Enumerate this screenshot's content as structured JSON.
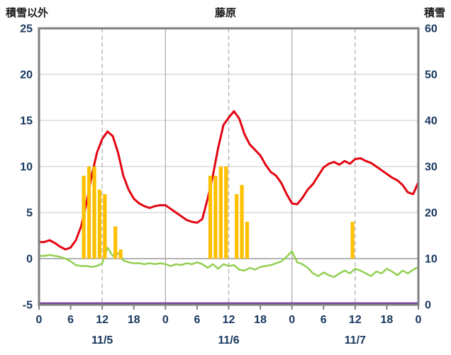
{
  "header": {
    "left_label": "積雪以外",
    "title": "藤原",
    "right_label": "積雪"
  },
  "chart_data": {
    "type": "line+bar",
    "title": "藤原",
    "left_axis": {
      "label": "積雪以外",
      "min": -5,
      "max": 25,
      "ticks": [
        25,
        20,
        15,
        10,
        5,
        0,
        -5
      ]
    },
    "right_axis": {
      "label": "積雪",
      "min": 0,
      "max": 60,
      "ticks": [
        60,
        50,
        40,
        30,
        20,
        10,
        0
      ]
    },
    "x_axis": {
      "hours_total": 72,
      "tick_interval_hours": 6,
      "tick_labels": [
        "0",
        "6",
        "12",
        "18",
        "0",
        "6",
        "12",
        "18",
        "0",
        "6",
        "12",
        "18",
        "0"
      ],
      "day_labels": [
        "11/5",
        "11/6",
        "11/7"
      ]
    },
    "grid": {
      "h_lines_at": [
        20,
        15,
        10,
        5
      ],
      "zero_line_at": 0,
      "v_solid_at_hours": [
        24,
        48
      ],
      "v_dashed_at_hours": [
        12,
        36,
        60
      ]
    },
    "series": [
      {
        "name": "snow-depth-line",
        "type": "line",
        "axis": "left",
        "color": "#E40613",
        "width": 3,
        "values": [
          1.8,
          1.8,
          2.0,
          1.7,
          1.3,
          1.0,
          1.2,
          2.0,
          3.5,
          6.0,
          9.0,
          11.5,
          13.0,
          13.8,
          13.3,
          11.5,
          9.0,
          7.5,
          6.5,
          6.0,
          5.7,
          5.5,
          5.7,
          5.8,
          5.8,
          5.4,
          5.0,
          4.6,
          4.2,
          4.0,
          3.9,
          4.3,
          6.5,
          9.0,
          12.0,
          14.5,
          15.3,
          16.0,
          15.2,
          13.5,
          12.4,
          11.8,
          11.2,
          10.2,
          9.4,
          9.0,
          8.2,
          7.0,
          6.0,
          5.9,
          6.6,
          7.5,
          8.1,
          9.0,
          9.9,
          10.3,
          10.5,
          10.2,
          10.6,
          10.3,
          10.8,
          10.9,
          10.6,
          10.4,
          10.0,
          9.6,
          9.2,
          8.8,
          8.5,
          8.0,
          7.2,
          7.0,
          8.3
        ]
      },
      {
        "name": "temperature-line",
        "type": "line",
        "axis": "left",
        "color": "#92D050",
        "width": 2.5,
        "values": [
          0.3,
          0.3,
          0.4,
          0.3,
          0.2,
          0.0,
          -0.3,
          -0.7,
          -0.8,
          -0.8,
          -0.9,
          -0.8,
          -0.5,
          1.2,
          0.3,
          0.6,
          -0.2,
          -0.4,
          -0.5,
          -0.5,
          -0.6,
          -0.5,
          -0.6,
          -0.5,
          -0.6,
          -0.8,
          -0.6,
          -0.7,
          -0.5,
          -0.6,
          -0.4,
          -0.6,
          -1.0,
          -0.6,
          -1.1,
          -0.6,
          -0.8,
          -0.7,
          -1.2,
          -1.3,
          -1.0,
          -1.2,
          -0.9,
          -0.8,
          -0.7,
          -0.5,
          -0.3,
          0.2,
          0.8,
          -0.4,
          -0.6,
          -1.0,
          -1.6,
          -1.9,
          -1.5,
          -1.8,
          -2.0,
          -1.6,
          -1.3,
          -1.6,
          -1.1,
          -1.3,
          -1.6,
          -1.9,
          -1.4,
          -1.6,
          -1.1,
          -1.4,
          -1.8,
          -1.3,
          -1.6,
          -1.2,
          -0.9
        ]
      },
      {
        "name": "precipitation-bars",
        "type": "bar",
        "axis": "left",
        "color": "#FFC000",
        "values": [
          0,
          0,
          0,
          0,
          0,
          0,
          0,
          0,
          9,
          10,
          10,
          7.5,
          7,
          0,
          3.5,
          1,
          0,
          0,
          0,
          0,
          0,
          0,
          0,
          0,
          0,
          0,
          0,
          0,
          0,
          0,
          0,
          0,
          9,
          9,
          10,
          10,
          0,
          7,
          8,
          4,
          0,
          0,
          0,
          0,
          0,
          0,
          0,
          0,
          0,
          0,
          0,
          0,
          0,
          0,
          0,
          0,
          0,
          0,
          0,
          4,
          0,
          0,
          0,
          0,
          0,
          0,
          0,
          0,
          0,
          0,
          0,
          0
        ]
      },
      {
        "name": "baseline-line",
        "type": "hline",
        "axis": "left",
        "color": "#7030A0",
        "width": 2.5,
        "value": -4.85
      }
    ],
    "colors": {
      "border": "#7F7F7F",
      "grid": "#C9C9C9",
      "zero_line": "#9A9A9A",
      "axis_text": "#17375E",
      "header_text": "#1a1a1a",
      "background": "#FFFFFF"
    }
  }
}
